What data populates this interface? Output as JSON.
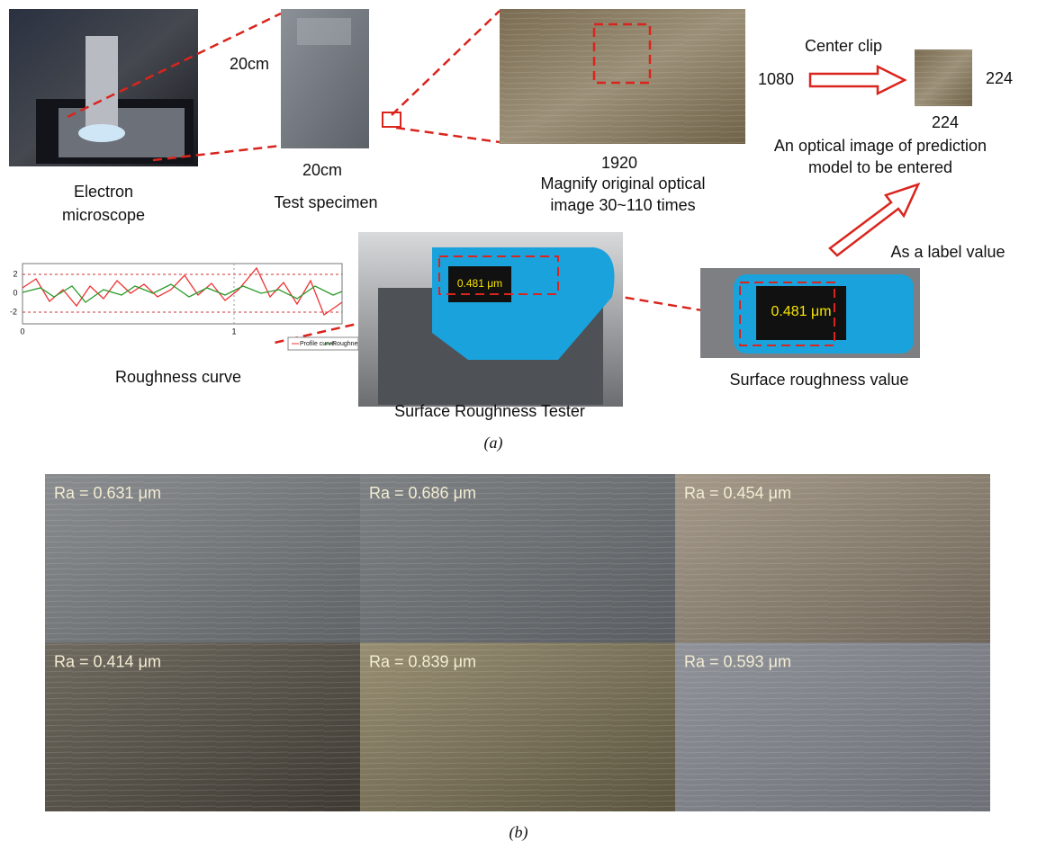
{
  "panel_a": {
    "microscope": {
      "lines": [
        "Electron",
        "microscope"
      ]
    },
    "specimen": {
      "side": "20cm",
      "bottom": "20cm",
      "label": "Test specimen"
    },
    "magnified": {
      "width": "1920",
      "lines": [
        "Magnify original optical",
        "image 30~110 times"
      ]
    },
    "clip": {
      "title": "Center clip",
      "height_in": "1080",
      "height_out": "224",
      "width_out": "224",
      "lines": [
        "An optical image of prediction",
        "model to be entered"
      ]
    },
    "label_arrow": "As a label value",
    "roughness_chart": {
      "yticks": [
        "2",
        "0",
        "-2"
      ],
      "xticks": [
        "0",
        "1"
      ],
      "legend": [
        "Profile curve",
        "Roughness curve"
      ],
      "label": "Roughness curve"
    },
    "tester": {
      "reading": "0.481 μm",
      "label": "Surface Roughness Tester"
    },
    "value": {
      "reading": "0.481 μm",
      "label": "Surface roughness value"
    },
    "caption": "(a)"
  },
  "panel_b": {
    "tiles": [
      {
        "label": "Ra = 0.631 μm"
      },
      {
        "label": "Ra = 0.686 μm"
      },
      {
        "label": "Ra = 0.454 μm"
      },
      {
        "label": "Ra = 0.414 μm"
      },
      {
        "label": "Ra = 0.839 μm"
      },
      {
        "label": "Ra = 0.593 μm"
      }
    ],
    "caption": "(b)"
  }
}
